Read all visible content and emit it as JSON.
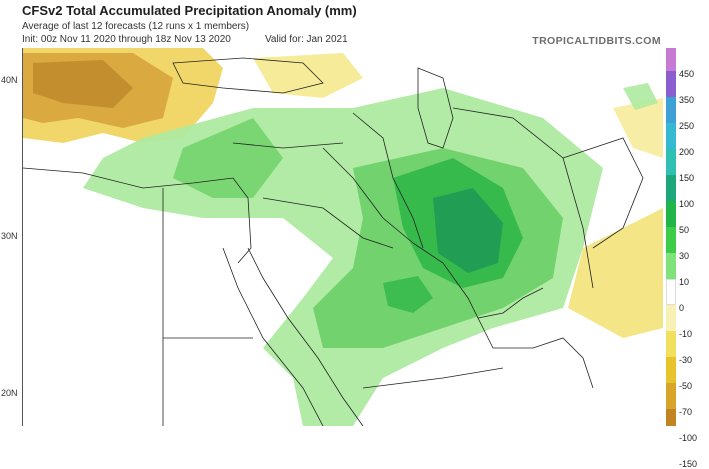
{
  "header": {
    "title": "CFSv2 Total Accumulated Precipitation Anomaly (mm)",
    "subtitle": "Average of last 12 forecasts (12 runs x 1 members)",
    "init": "Init: 00z Nov 11 2020 through 18z Nov 13 2020",
    "valid": "Valid for: Jan 2021",
    "brand": "TROPICALTIDBITS.COM"
  },
  "map": {
    "lat_labels": [
      {
        "text": "40N"
      },
      {
        "text": "30N"
      },
      {
        "text": "20N"
      }
    ],
    "colors": {
      "land": "#ffffff",
      "border": "#222222",
      "coast": "#2a2a2a"
    }
  },
  "colorbar": {
    "levels": [
      "450",
      "350",
      "250",
      "200",
      "150",
      "100",
      "50",
      "30",
      "10",
      "0",
      "-10",
      "-30",
      "-50",
      "-70",
      "-100",
      "-150"
    ],
    "colors": [
      "#c77ad4",
      "#8b5fcf",
      "#3fa0d6",
      "#35b8d2",
      "#2fc0b3",
      "#1ea77a",
      "#20b449",
      "#3ccc48",
      "#7fe27a",
      "#ffffff",
      "#f7f2b4",
      "#f1df5e",
      "#e7c32c",
      "#d8a42a",
      "#c28323",
      "#9a5a17"
    ]
  }
}
